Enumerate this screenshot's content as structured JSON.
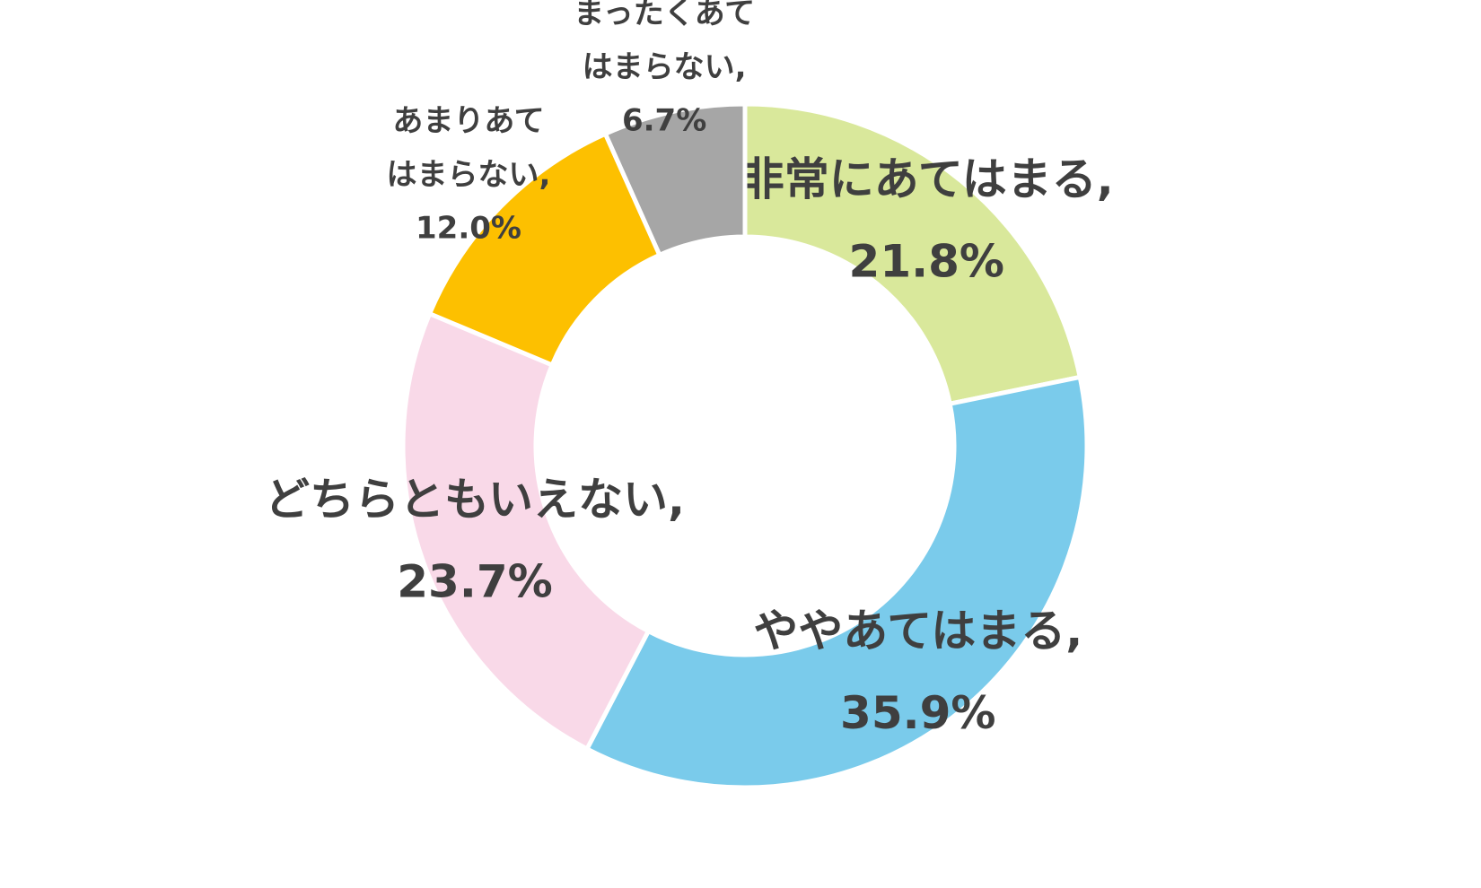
{
  "chart_data": {
    "type": "donut",
    "categories": [
      "非常にあてはまる",
      "ややあてはまる",
      "どちらともいえない",
      "あまりあてはまらない",
      "まったくあてはまらない"
    ],
    "values": [
      21.8,
      35.9,
      23.7,
      12.0,
      6.7
    ],
    "value_labels": [
      "21.8%",
      "35.9%",
      "23.7%",
      "12.0%",
      "6.7%"
    ],
    "label_separator": ",",
    "colors": [
      "#d9e89b",
      "#7acbeb",
      "#f9d9e8",
      "#fdc000",
      "#a6a6a6"
    ]
  }
}
